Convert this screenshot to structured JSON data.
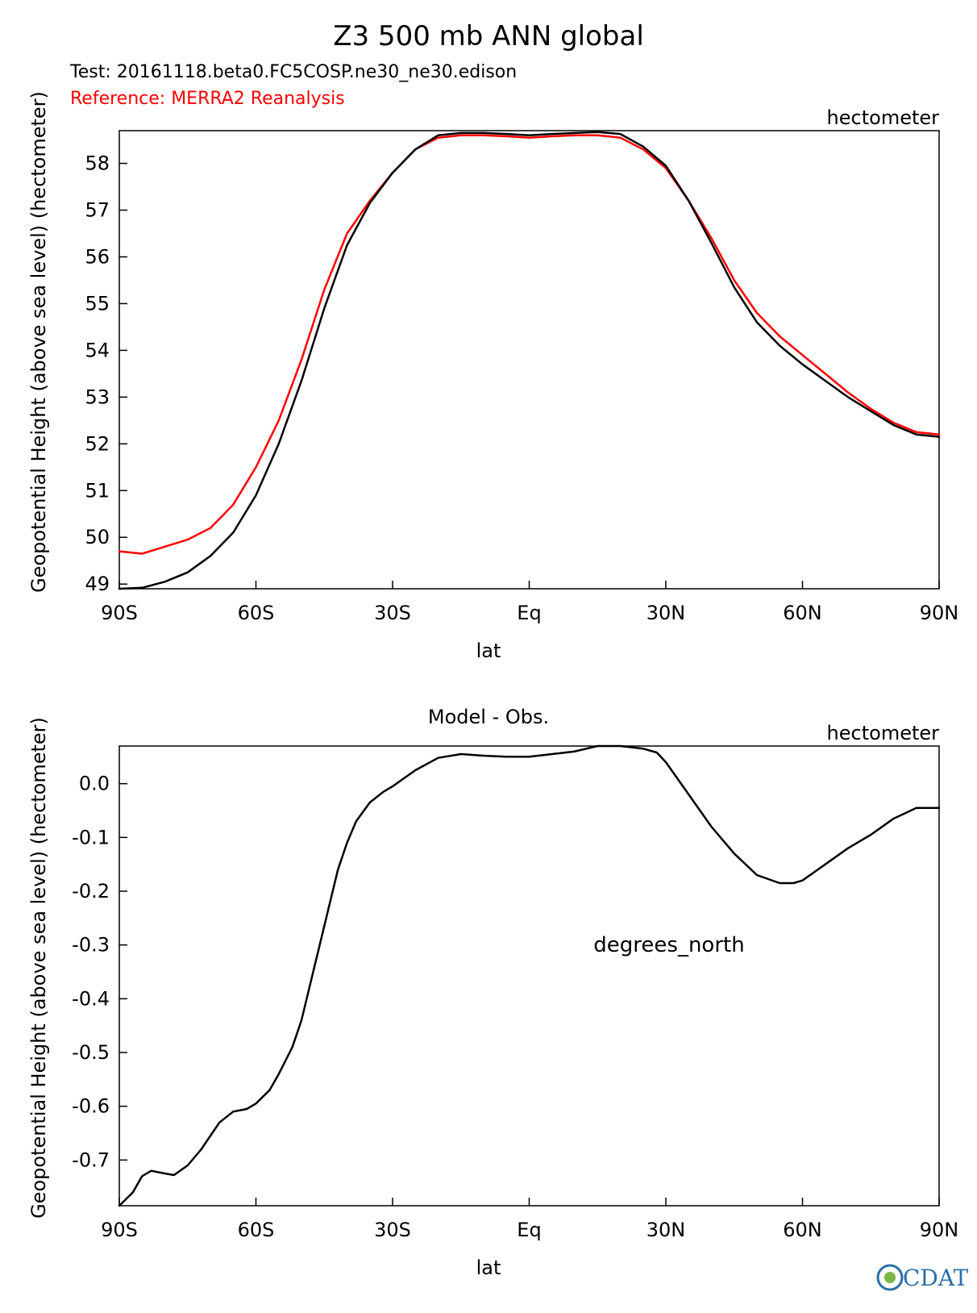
{
  "title": "Z3 500 mb ANN global",
  "test_label": "Test: 20161118.beta0.FC5COSP.ne30_ne30.edison",
  "reference_label": "Reference: MERRA2 Reanalysis",
  "left_ylabel_top": "Geopotential Height (above sea level) (hectometer)",
  "left_ylabel_bottom": "Geopotential Height (above sea level) (hectometer)",
  "logo_text": "CDAT",
  "colors": {
    "test": "#000000",
    "reference": "#ff0000"
  },
  "chart_data": [
    {
      "type": "line",
      "title": "",
      "units": "hectometer",
      "xlabel": "lat",
      "ylabel": "Geopotential Height (above sea level) (hectometer)",
      "xlim": [
        -90,
        90
      ],
      "ylim": [
        48.9,
        58.7
      ],
      "x_ticks": [
        -90,
        -60,
        -30,
        0,
        30,
        60,
        90
      ],
      "x_tick_labels": [
        "90S",
        "60S",
        "30S",
        "Eq",
        "30N",
        "60N",
        "90N"
      ],
      "y_ticks": [
        49,
        50,
        51,
        52,
        53,
        54,
        55,
        56,
        57,
        58
      ],
      "y_tick_labels": [
        "49",
        "50",
        "51",
        "52",
        "53",
        "54",
        "55",
        "56",
        "57",
        "58"
      ],
      "series": [
        {
          "name": "Reference",
          "color": "#ff0000",
          "x": [
            -90,
            -85,
            -80,
            -75,
            -70,
            -65,
            -60,
            -55,
            -50,
            -45,
            -40,
            -35,
            -30,
            -25,
            -20,
            -15,
            -10,
            -5,
            0,
            5,
            10,
            15,
            20,
            25,
            30,
            35,
            40,
            45,
            50,
            55,
            60,
            65,
            70,
            75,
            80,
            85,
            90
          ],
          "y": [
            49.7,
            49.65,
            49.8,
            49.95,
            50.2,
            50.7,
            51.5,
            52.5,
            53.8,
            55.3,
            56.5,
            57.2,
            57.8,
            58.3,
            58.55,
            58.6,
            58.6,
            58.58,
            58.55,
            58.58,
            58.6,
            58.6,
            58.55,
            58.3,
            57.9,
            57.2,
            56.4,
            55.5,
            54.8,
            54.3,
            53.9,
            53.5,
            53.1,
            52.75,
            52.45,
            52.25,
            52.2
          ]
        },
        {
          "name": "Test",
          "color": "#000000",
          "x": [
            -90,
            -85,
            -80,
            -75,
            -70,
            -65,
            -60,
            -55,
            -50,
            -45,
            -40,
            -35,
            -30,
            -25,
            -20,
            -15,
            -10,
            -5,
            0,
            5,
            10,
            15,
            20,
            25,
            30,
            35,
            40,
            45,
            50,
            55,
            60,
            65,
            70,
            75,
            80,
            85,
            90
          ],
          "y": [
            48.9,
            48.92,
            49.05,
            49.25,
            49.6,
            50.1,
            50.9,
            52.0,
            53.35,
            54.9,
            56.25,
            57.15,
            57.8,
            58.3,
            58.6,
            58.65,
            58.65,
            58.63,
            58.6,
            58.63,
            58.65,
            58.67,
            58.63,
            58.36,
            57.95,
            57.2,
            56.3,
            55.35,
            54.6,
            54.1,
            53.7,
            53.35,
            53.0,
            52.7,
            52.4,
            52.2,
            52.15
          ]
        }
      ]
    },
    {
      "type": "line",
      "title": "Model - Obs.",
      "units": "hectometer",
      "xlabel": "lat",
      "ylabel": "Geopotential Height (above sea level) (hectometer)",
      "annotation": "degrees_north",
      "xlim": [
        -90,
        90
      ],
      "ylim": [
        -0.785,
        0.07
      ],
      "x_ticks": [
        -90,
        -60,
        -30,
        0,
        30,
        60,
        90
      ],
      "x_tick_labels": [
        "90S",
        "60S",
        "30S",
        "Eq",
        "30N",
        "60N",
        "90N"
      ],
      "y_ticks": [
        0.0,
        -0.1,
        -0.2,
        -0.3,
        -0.4,
        -0.5,
        -0.6,
        -0.7
      ],
      "y_tick_labels": [
        "0.0",
        "-0.1",
        "-0.2",
        "-0.3",
        "-0.4",
        "-0.5",
        "-0.6",
        "-0.7"
      ],
      "series": [
        {
          "name": "Model - Obs.",
          "color": "#000000",
          "x": [
            -90,
            -87,
            -85,
            -83,
            -80,
            -78,
            -75,
            -72,
            -70,
            -68,
            -65,
            -62,
            -60,
            -57,
            -55,
            -52,
            -50,
            -48,
            -46,
            -44,
            -42,
            -40,
            -38,
            -35,
            -32,
            -30,
            -25,
            -20,
            -15,
            -10,
            -5,
            0,
            5,
            10,
            15,
            20,
            25,
            28,
            30,
            35,
            40,
            45,
            50,
            55,
            58,
            60,
            65,
            70,
            75,
            80,
            85,
            90
          ],
          "y": [
            -0.785,
            -0.76,
            -0.73,
            -0.72,
            -0.725,
            -0.728,
            -0.71,
            -0.68,
            -0.655,
            -0.63,
            -0.61,
            -0.605,
            -0.595,
            -0.57,
            -0.54,
            -0.49,
            -0.44,
            -0.37,
            -0.3,
            -0.23,
            -0.16,
            -0.11,
            -0.07,
            -0.035,
            -0.015,
            -0.005,
            0.025,
            0.048,
            0.055,
            0.052,
            0.05,
            0.05,
            0.055,
            0.06,
            0.07,
            0.07,
            0.065,
            0.058,
            0.04,
            -0.02,
            -0.08,
            -0.13,
            -0.17,
            -0.185,
            -0.185,
            -0.18,
            -0.15,
            -0.12,
            -0.095,
            -0.065,
            -0.045,
            -0.045
          ]
        }
      ]
    }
  ]
}
